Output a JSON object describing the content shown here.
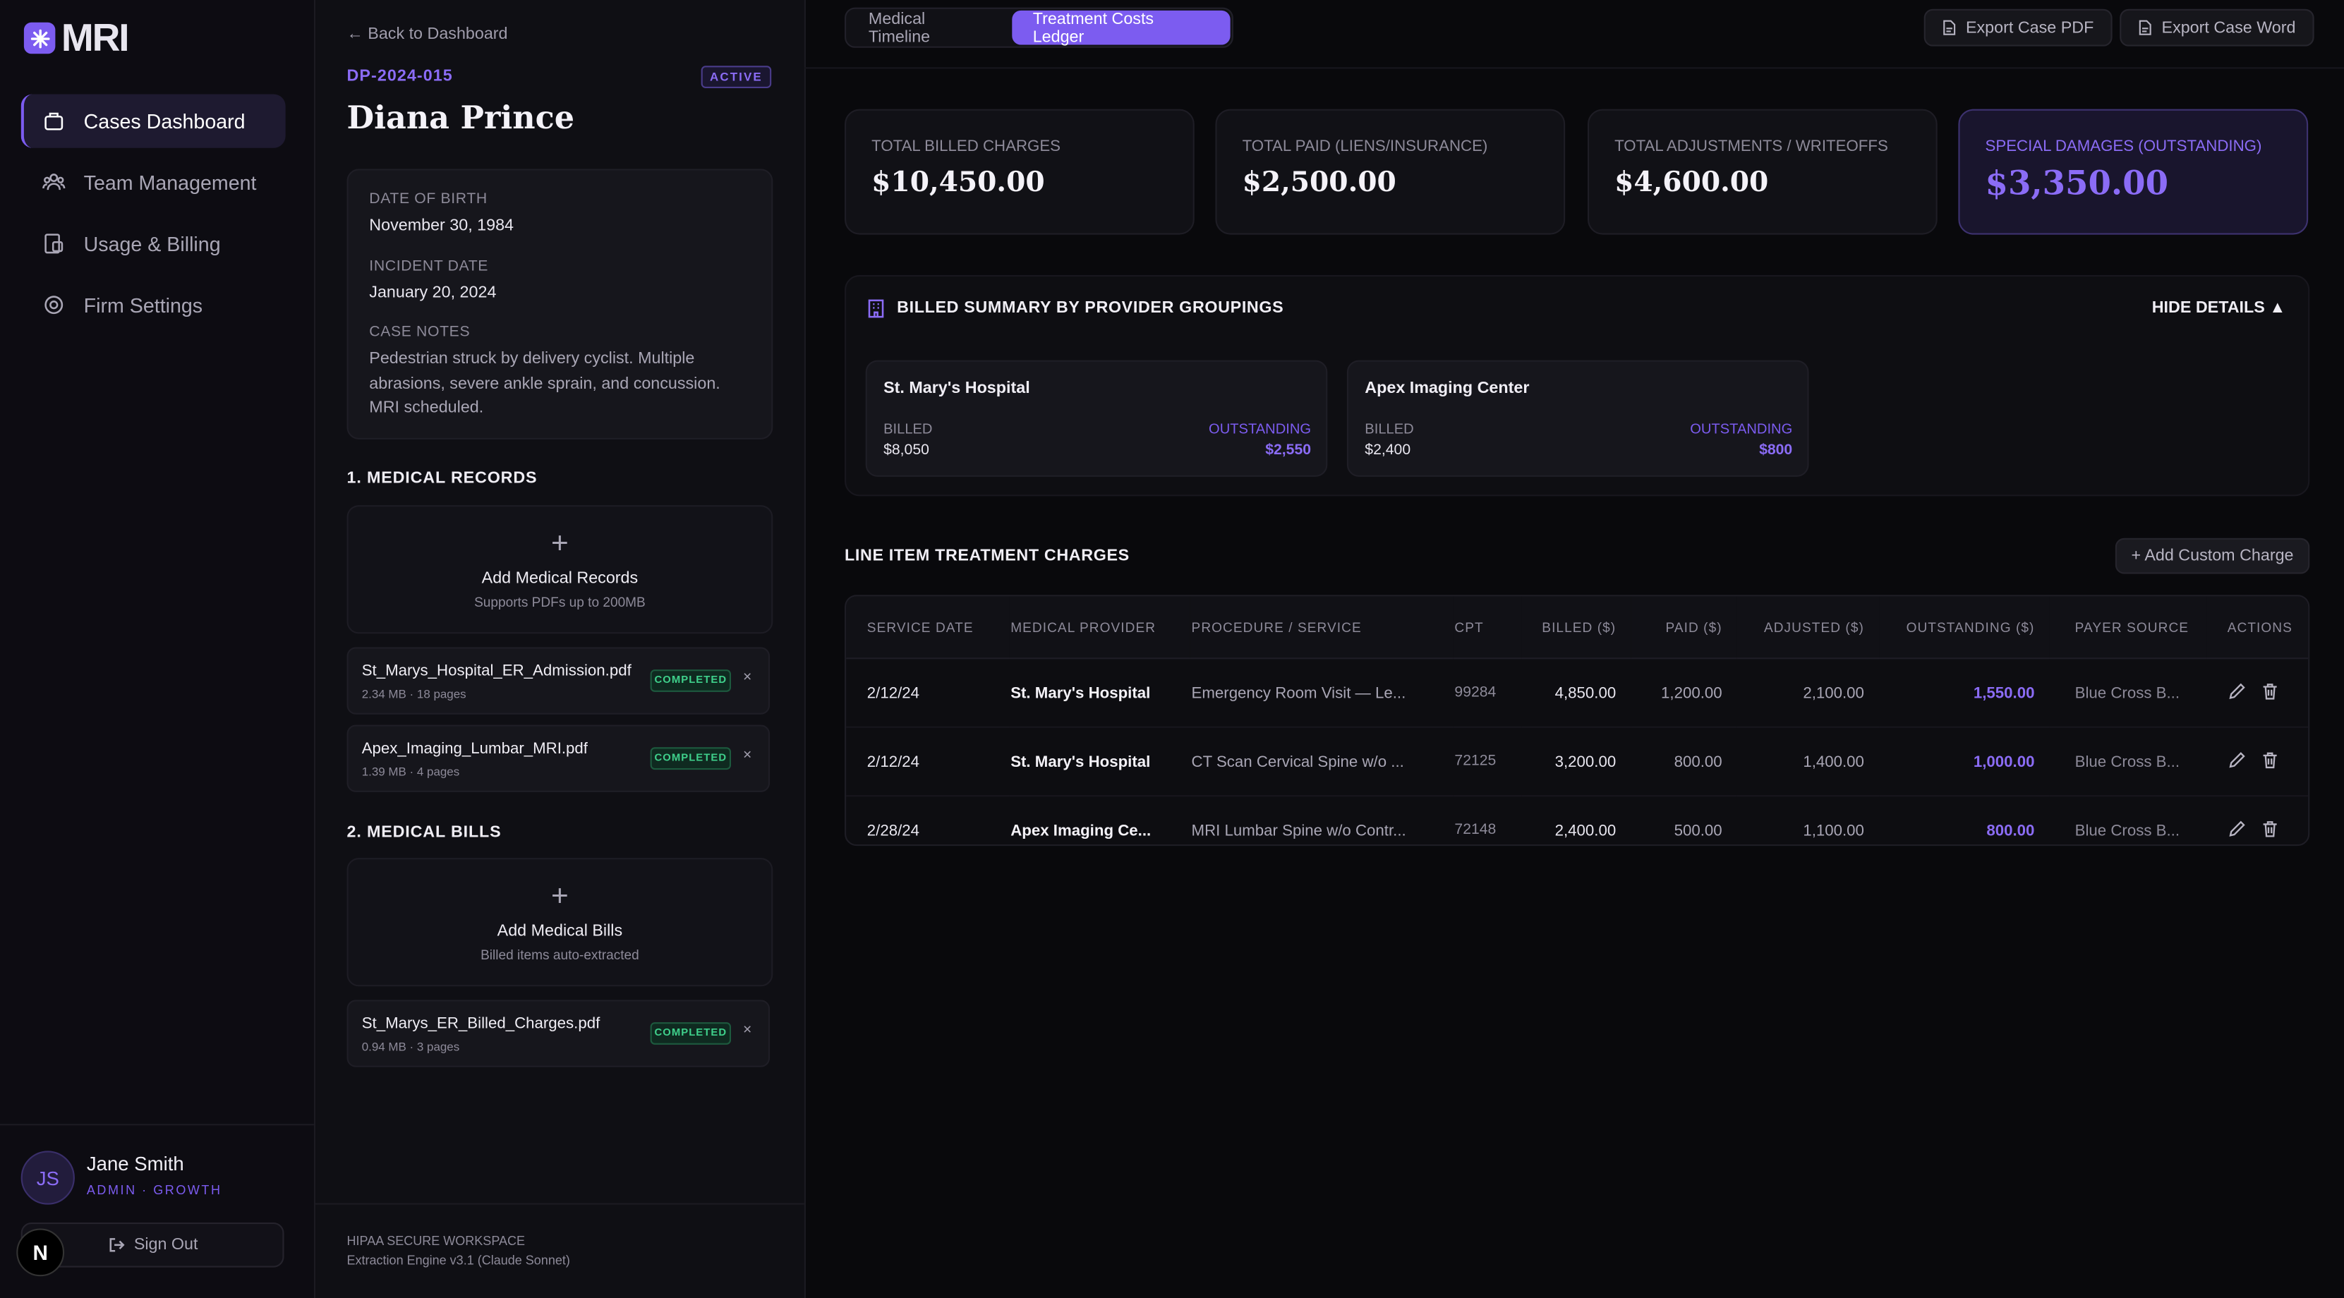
{
  "sidebar": {
    "brand": "MRI",
    "nav": [
      "Cases Dashboard",
      "Team Management",
      "Usage & Billing",
      "Firm Settings"
    ],
    "user": {
      "initials": "JS",
      "name": "Jane Smith",
      "role": "ADMIN · GROWTH"
    },
    "sign_out": "Sign Out",
    "dev_badge": "N"
  },
  "case_panel": {
    "back": "← Back to Dashboard",
    "case_id": "DP-2024-015",
    "status": "ACTIVE",
    "name": "Diana Prince",
    "details": [
      {
        "label": "DATE OF BIRTH",
        "value": "November 30, 1984"
      },
      {
        "label": "INCIDENT DATE",
        "value": "January 20, 2024"
      },
      {
        "label": "CASE NOTES",
        "value": "Pedestrian struck by delivery cyclist. Multiple abrasions, severe ankle sprain, and concussion. MRI scheduled."
      }
    ],
    "records": {
      "title": "1. MEDICAL RECORDS",
      "upload_title": "Add Medical Records",
      "upload_subtitle": "Supports PDFs up to 200MB",
      "files": [
        {
          "name": "St_Marys_Hospital_ER_Admission.pdf",
          "meta": "2.34 MB · 18 pages",
          "status": "COMPLETED"
        },
        {
          "name": "Apex_Imaging_Lumbar_MRI.pdf",
          "meta": "1.39 MB · 4 pages",
          "status": "COMPLETED"
        }
      ]
    },
    "bills": {
      "title": "2. MEDICAL BILLS",
      "upload_title": "Add Medical Bills",
      "upload_subtitle": "Billed items auto-extracted",
      "files": [
        {
          "name": "St_Marys_ER_Billed_Charges.pdf",
          "meta": "0.94 MB · 3 pages",
          "status": "COMPLETED"
        }
      ]
    },
    "footer": [
      "HIPAA SECURE WORKSPACE",
      "Extraction Engine v3.1 (Claude Sonnet)"
    ]
  },
  "main": {
    "tabs": [
      "Medical Timeline",
      "Treatment Costs Ledger"
    ],
    "exports": [
      "Export Case PDF",
      "Export Case Word"
    ],
    "cards": [
      {
        "label": "TOTAL BILLED CHARGES",
        "value": "$10,450.00"
      },
      {
        "label": "TOTAL PAID (LIENS/INSURANCE)",
        "value": "$2,500.00"
      },
      {
        "label": "TOTAL ADJUSTMENTS / WRITEOFFS",
        "value": "$4,600.00"
      },
      {
        "label": "SPECIAL DAMAGES (OUTSTANDING)",
        "value": "$3,350.00"
      }
    ],
    "provider_summary": {
      "title": "BILLED SUMMARY BY PROVIDER GROUPINGS",
      "toggle": "HIDE DETAILS ▲",
      "providers": [
        {
          "name": "St. Mary's Hospital",
          "billed_label": "BILLED",
          "billed": "$8,050",
          "outstanding_label": "OUTSTANDING",
          "outstanding": "$2,550"
        },
        {
          "name": "Apex Imaging Center",
          "billed_label": "BILLED",
          "billed": "$2,400",
          "outstanding_label": "OUTSTANDING",
          "outstanding": "$800"
        }
      ]
    },
    "line_items": {
      "title": "LINE ITEM TREATMENT CHARGES",
      "add_button": "+ Add Custom Charge",
      "headers": [
        "SERVICE DATE",
        "MEDICAL PROVIDER",
        "PROCEDURE / SERVICE",
        "CPT",
        "BILLED ($)",
        "PAID ($)",
        "ADJUSTED ($)",
        "OUTSTANDING ($)",
        "PAYER SOURCE",
        "ACTIONS"
      ],
      "rows": [
        [
          "2/12/24",
          "St. Mary's Hospital",
          "Emergency Room Visit — Le...",
          "99284",
          "4,850.00",
          "1,200.00",
          "2,100.00",
          "1,550.00",
          "Blue Cross B..."
        ],
        [
          "2/12/24",
          "St. Mary's Hospital",
          "CT Scan Cervical Spine w/o ...",
          "72125",
          "3,200.00",
          "800.00",
          "1,400.00",
          "1,000.00",
          "Blue Cross B..."
        ],
        [
          "2/28/24",
          "Apex Imaging Ce...",
          "MRI Lumbar Spine w/o Contr...",
          "72148",
          "2,400.00",
          "500.00",
          "1,100.00",
          "800.00",
          "Blue Cross B..."
        ]
      ]
    }
  }
}
